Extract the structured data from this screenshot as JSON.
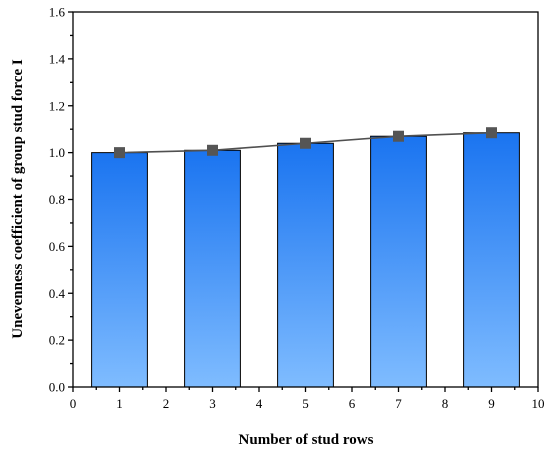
{
  "chart_data": {
    "type": "bar",
    "title": "",
    "xlabel": "Number of stud rows",
    "ylabel": "Unevenness coefficient of group stud force I",
    "xlim": [
      0,
      10
    ],
    "ylim": [
      0,
      1.6
    ],
    "x_ticks": [
      "0",
      "1",
      "2",
      "3",
      "4",
      "5",
      "6",
      "7",
      "8",
      "9",
      "10"
    ],
    "y_ticks": [
      "0.0",
      "0.2",
      "0.4",
      "0.6",
      "0.8",
      "1.0",
      "1.2",
      "1.4",
      "1.6"
    ],
    "x": [
      1,
      3,
      5,
      7,
      9
    ],
    "values": [
      1.0,
      1.01,
      1.04,
      1.07,
      1.085
    ],
    "bar_width": 1.2,
    "line_overlay": true,
    "marker": "square",
    "grid": false,
    "colors": {
      "bar_top": "#1a74f0",
      "bar_bottom": "#7fbcff",
      "bar_edge": "#000000",
      "line": "#505050",
      "marker": "#555555"
    }
  }
}
